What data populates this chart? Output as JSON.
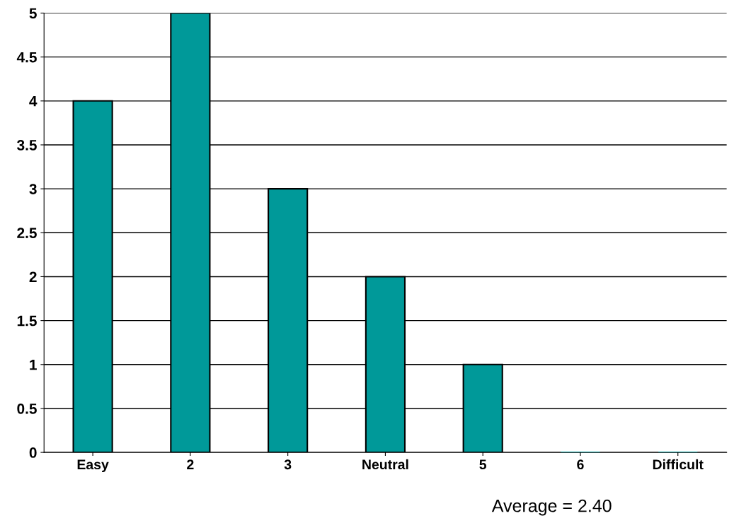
{
  "chart_data": {
    "type": "bar",
    "categories": [
      "Easy",
      "2",
      "3",
      "Neutral",
      "5",
      "6",
      "Difficult"
    ],
    "values": [
      4,
      5,
      3,
      2,
      1,
      0,
      0
    ],
    "color": "#009999",
    "ylim": [
      0,
      5
    ],
    "yticks": [
      0,
      0.5,
      1,
      1.5,
      2,
      2.5,
      3,
      3.5,
      4,
      4.5,
      5
    ],
    "grid": "y",
    "annotations": [
      "Average = 2.40"
    ]
  }
}
